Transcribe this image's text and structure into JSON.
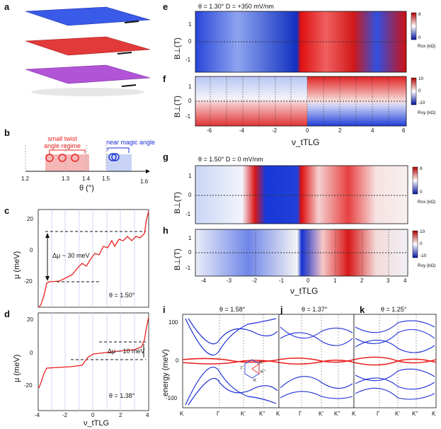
{
  "panels": {
    "a": {
      "label": "a"
    },
    "b": {
      "label": "b",
      "small_twist_label": "small twist\nangle regime",
      "near_magic_label": "near magic angle",
      "xaxis_label": "θ (°)",
      "ticks": [
        "1.2",
        "1.3",
        "1.4",
        "1.5",
        "1.6"
      ]
    },
    "c": {
      "label": "c",
      "ylabel": "μ (meV)",
      "delta_label": "Δμ ~ 30 meV",
      "theta": "θ = 1.50°",
      "yticks": [
        "20",
        "0",
        "-20"
      ]
    },
    "d": {
      "label": "d",
      "ylabel": "μ (meV)",
      "delta_label": "Δμ ~ 10 meV",
      "theta": "θ = 1.38°",
      "yticks": [
        "20",
        "0",
        "-20"
      ],
      "xticks": [
        "-4",
        "-2",
        "0",
        "2",
        "4"
      ],
      "xlabel": "ν_tTLG"
    },
    "e": {
      "label": "e",
      "header": "θ = 1.30°   D = +350 mV/nm",
      "ylabel": "B⊥(T)",
      "yticks": [
        "1",
        "0",
        "-1"
      ],
      "cbar_label": "Rxx (kΩ)",
      "cbar_ticks": [
        "8",
        "0"
      ]
    },
    "f": {
      "label": "f",
      "ylabel": "B⊥(T)",
      "yticks": [
        "1",
        "0",
        "-1"
      ],
      "xticks": [
        "-6",
        "-4",
        "-2",
        "0",
        "2",
        "4",
        "6"
      ],
      "xlabel": "ν_tTLG",
      "cbar_label": "Rxy (kΩ)",
      "cbar_ticks": [
        "10",
        "0",
        "-10"
      ]
    },
    "g": {
      "label": "g",
      "header": "θ = 1.50°   D = 0 mV/nm",
      "ylabel": "B⊥(T)",
      "yticks": [
        "1",
        "0",
        "-1"
      ],
      "cbar_label": "Rxx (kΩ)",
      "cbar_ticks": [
        "8",
        "0"
      ]
    },
    "h": {
      "label": "h",
      "ylabel": "B⊥(T)",
      "yticks": [
        "1",
        "0",
        "-1"
      ],
      "xticks": [
        "-4",
        "-3",
        "-2",
        "-1",
        "0",
        "1",
        "2",
        "3",
        "4"
      ],
      "xlabel": "ν_tTLG",
      "cbar_label": "Rxy (kΩ)",
      "cbar_ticks": [
        "10",
        "0",
        "-10"
      ]
    },
    "i": {
      "label": "i",
      "theta": "θ = 1.58°",
      "ylabel": "energy (meV)",
      "yticks": [
        "100",
        "0",
        "-100"
      ],
      "kpoints": [
        "K",
        "Γ",
        "K'",
        "K''"
      ],
      "inset": [
        "K'",
        "K''",
        "Γ",
        "K"
      ]
    },
    "j": {
      "label": "j",
      "theta": "θ = 1.37°",
      "kpoints": [
        "K",
        "Γ",
        "K'",
        "K''"
      ]
    },
    "k": {
      "label": "k",
      "theta": "θ = 1.25°",
      "kpoints": [
        "K",
        "Γ",
        "K'",
        "K''",
        "K"
      ]
    }
  },
  "colors": {
    "red": "#e8201e",
    "blue": "#1c2fd6",
    "pink": "#f5b6b6",
    "lightblue": "#c9d3f5",
    "purple": "#a040d0"
  }
}
